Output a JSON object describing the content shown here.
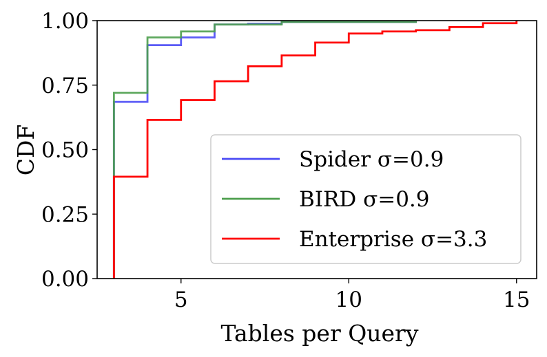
{
  "chart_data": {
    "type": "line",
    "step": true,
    "xlabel": "Tables per Query",
    "ylabel": "CDF",
    "xlim": [
      2.5,
      15.6
    ],
    "ylim": [
      0,
      1
    ],
    "xticks": [
      5,
      10,
      15
    ],
    "xtick_labels": [
      "5",
      "10",
      "15"
    ],
    "yticks": [
      0,
      0.25,
      0.5,
      0.75,
      1.0
    ],
    "ytick_labels": [
      "0.00",
      "0.25",
      "0.50",
      "0.75",
      "1.00"
    ],
    "grid": false,
    "legend_position": "lower-right",
    "series": [
      {
        "name": "Spider σ=0.9",
        "color": "#4a4af5",
        "x": [
          3,
          4,
          5,
          6,
          7,
          8,
          12
        ],
        "y": [
          0.685,
          0.905,
          0.935,
          0.985,
          0.988,
          0.995,
          1.0
        ]
      },
      {
        "name": "BIRD σ=0.9",
        "color": "#4c9e4c",
        "x": [
          3,
          4,
          5,
          6,
          8,
          12
        ],
        "y": [
          0.72,
          0.935,
          0.958,
          0.985,
          0.995,
          1.0
        ]
      },
      {
        "name": "Enterprise σ=3.3",
        "color": "#ff0000",
        "x": [
          3,
          4,
          5,
          6,
          7,
          8,
          9,
          10,
          11,
          12,
          13,
          14,
          15
        ],
        "y": [
          0.395,
          0.615,
          0.692,
          0.765,
          0.823,
          0.865,
          0.915,
          0.95,
          0.958,
          0.963,
          0.975,
          0.99,
          1.0
        ]
      }
    ]
  }
}
